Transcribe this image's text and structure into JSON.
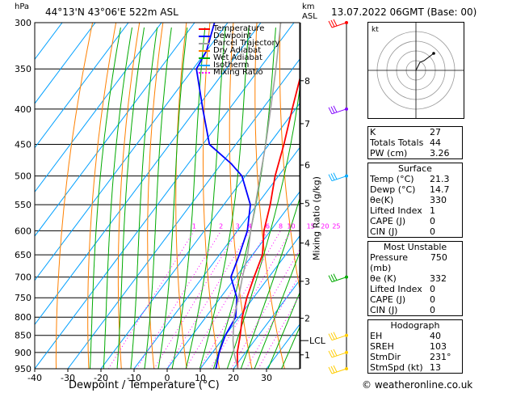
{
  "header": {
    "pressure_unit": "hPa",
    "location": "44°13'N  43°06'E  522m  ASL",
    "height_unit": "km\nASL",
    "datetime": "13.07.2022  06GMT  (Base: 00)",
    "credit": "© weatheronline.co.uk"
  },
  "legend": [
    {
      "label": "Temperature",
      "color": "#ff0000",
      "style": "solid"
    },
    {
      "label": "Dewpoint",
      "color": "#0000ff",
      "style": "solid"
    },
    {
      "label": "Parcel Trajectory",
      "color": "#a0a0a0",
      "style": "solid"
    },
    {
      "label": "Dry Adiabat",
      "color": "#ff8000",
      "style": "solid"
    },
    {
      "label": "Wet Adiabat",
      "color": "#00aa00",
      "style": "solid"
    },
    {
      "label": "Isotherm",
      "color": "#00a0ff",
      "style": "solid"
    },
    {
      "label": "Mixing Ratio",
      "color": "#ff00ff",
      "style": "dotted"
    }
  ],
  "chart_data": {
    "type": "line",
    "title": "",
    "xlabel": "Dewpoint / Temperature (°C)",
    "ylabel": "hPa",
    "right_label": "Mixing Ratio (g/kg)",
    "xlim": [
      -40,
      40
    ],
    "x_ticks": [
      -40,
      -30,
      -20,
      -10,
      0,
      10,
      20,
      30
    ],
    "pressure_levels": [
      300,
      350,
      400,
      450,
      500,
      550,
      600,
      650,
      700,
      750,
      800,
      850,
      900,
      950
    ],
    "km_ticks": [
      {
        "km": "1",
        "p": 907
      },
      {
        "km": "2",
        "p": 803
      },
      {
        "km": "3",
        "p": 710
      },
      {
        "km": "4",
        "p": 625
      },
      {
        "km": "5",
        "p": 548
      },
      {
        "km": "6",
        "p": 482
      },
      {
        "km": "7",
        "p": 420
      },
      {
        "km": "8",
        "p": 364
      }
    ],
    "lcl": {
      "label": "LCL",
      "p": 865
    },
    "mixing_ratio_labels": [
      "1",
      "2",
      "3",
      "4",
      "6",
      "8",
      "10",
      "15",
      "20",
      "25"
    ],
    "colors": {
      "temperature": "#ff0000",
      "dewpoint": "#0000ff",
      "parcel": "#a0a0a0",
      "dry_adiabat": "#ff8000",
      "wet_adiabat": "#00aa00",
      "isotherm": "#00a0ff",
      "mixing_ratio": "#ff00ff"
    },
    "series": [
      {
        "name": "Temperature",
        "points": [
          [
            950,
            21.3
          ],
          [
            900,
            17.5
          ],
          [
            850,
            14.5
          ],
          [
            800,
            11
          ],
          [
            750,
            8
          ],
          [
            700,
            5.5
          ],
          [
            650,
            3
          ],
          [
            600,
            -2
          ],
          [
            550,
            -6
          ],
          [
            500,
            -11
          ],
          [
            450,
            -15.5
          ],
          [
            400,
            -21
          ],
          [
            350,
            -27
          ],
          [
            300,
            -35
          ]
        ]
      },
      {
        "name": "Dewpoint",
        "points": [
          [
            950,
            14.7
          ],
          [
            900,
            12
          ],
          [
            850,
            10
          ],
          [
            800,
            9
          ],
          [
            750,
            5
          ],
          [
            700,
            -1.5
          ],
          [
            650,
            -4
          ],
          [
            600,
            -7
          ],
          [
            550,
            -12
          ],
          [
            500,
            -21
          ],
          [
            480,
            -27
          ],
          [
            450,
            -38
          ],
          [
            400,
            -48
          ],
          [
            350,
            -59
          ],
          [
            330,
            -60
          ],
          [
            300,
            -64
          ]
        ]
      },
      {
        "name": "Parcel Trajectory",
        "points": [
          [
            950,
            21.3
          ],
          [
            900,
            16.5
          ],
          [
            865,
            13.5
          ],
          [
            800,
            8.5
          ],
          [
            750,
            5.5
          ],
          [
            700,
            2
          ],
          [
            650,
            -1.5
          ],
          [
            600,
            -6
          ],
          [
            550,
            -10.5
          ],
          [
            500,
            -15.5
          ],
          [
            450,
            -21
          ],
          [
            400,
            -27.5
          ],
          [
            350,
            -35
          ],
          [
            300,
            -44
          ]
        ]
      }
    ],
    "wind_profile": [
      "300",
      "400",
      "500",
      "700",
      "850",
      "900",
      "950"
    ],
    "hodograph_label": "kt"
  },
  "indices": {
    "top": [
      {
        "label": "K",
        "value": "27"
      },
      {
        "label": "Totals Totals",
        "value": "44"
      },
      {
        "label": "PW (cm)",
        "value": "3.26"
      }
    ],
    "surface": {
      "title": "Surface",
      "rows": [
        {
          "label": "Temp (°C)",
          "value": "21.3"
        },
        {
          "label": "Dewp (°C)",
          "value": "14.7"
        },
        {
          "label": "θe(K)",
          "value": "330"
        },
        {
          "label": "Lifted Index",
          "value": "1"
        },
        {
          "label": "CAPE (J)",
          "value": "0"
        },
        {
          "label": "CIN (J)",
          "value": "0"
        }
      ]
    },
    "most_unstable": {
      "title": "Most Unstable",
      "rows": [
        {
          "label": "Pressure (mb)",
          "value": "750"
        },
        {
          "label": "θe (K)",
          "value": "332"
        },
        {
          "label": "Lifted Index",
          "value": "0"
        },
        {
          "label": "CAPE (J)",
          "value": "0"
        },
        {
          "label": "CIN (J)",
          "value": "0"
        }
      ]
    },
    "hodograph": {
      "title": "Hodograph",
      "rows": [
        {
          "label": "EH",
          "value": "40"
        },
        {
          "label": "SREH",
          "value": "103"
        },
        {
          "label": "StmDir",
          "value": "231°"
        },
        {
          "label": "StmSpd (kt)",
          "value": "13"
        }
      ]
    }
  }
}
